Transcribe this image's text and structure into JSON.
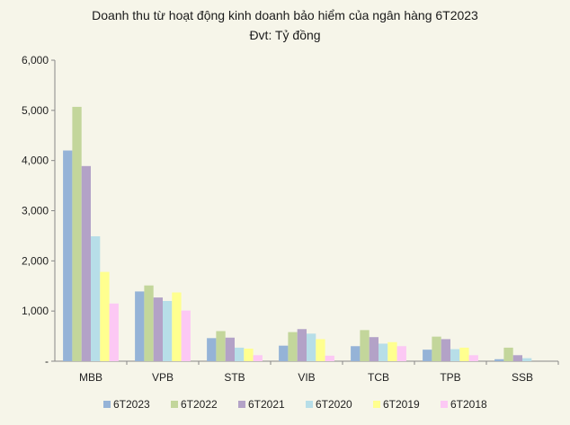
{
  "chart_data": {
    "type": "bar",
    "title": "Doanh thu từ hoạt động kinh doanh bảo hiểm của ngân hàng 6T2023",
    "subtitle": "Đvt: Tỷ đồng",
    "categories": [
      "MBB",
      "VPB",
      "STB",
      "VIB",
      "TCB",
      "TPB",
      "SSB"
    ],
    "ylim": [
      0,
      6000
    ],
    "yticks": [
      0,
      1000,
      2000,
      3000,
      4000,
      5000,
      6000
    ],
    "ytick_labels": [
      "-",
      "1,000",
      "2,000",
      "3,000",
      "4,000",
      "5,000",
      "6,000"
    ],
    "grid": false,
    "legend_position": "bottom",
    "series": [
      {
        "name": "6T2023",
        "color": "#95b3d7",
        "values": [
          4200,
          1390,
          460,
          310,
          300,
          230,
          40
        ]
      },
      {
        "name": "6T2022",
        "color": "#c3d69b",
        "values": [
          5070,
          1510,
          600,
          580,
          620,
          490,
          270
        ]
      },
      {
        "name": "6T2021",
        "color": "#b3a2c7",
        "values": [
          3890,
          1270,
          470,
          640,
          480,
          440,
          120
        ]
      },
      {
        "name": "6T2020",
        "color": "#b7dee8",
        "values": [
          2490,
          1200,
          270,
          550,
          350,
          240,
          60
        ]
      },
      {
        "name": "6T2019",
        "color": "#ffff8f",
        "values": [
          1780,
          1370,
          250,
          440,
          380,
          270,
          0
        ]
      },
      {
        "name": "6T2018",
        "color": "#fcc8f4",
        "values": [
          1150,
          1010,
          120,
          110,
          300,
          120,
          0
        ]
      }
    ]
  }
}
